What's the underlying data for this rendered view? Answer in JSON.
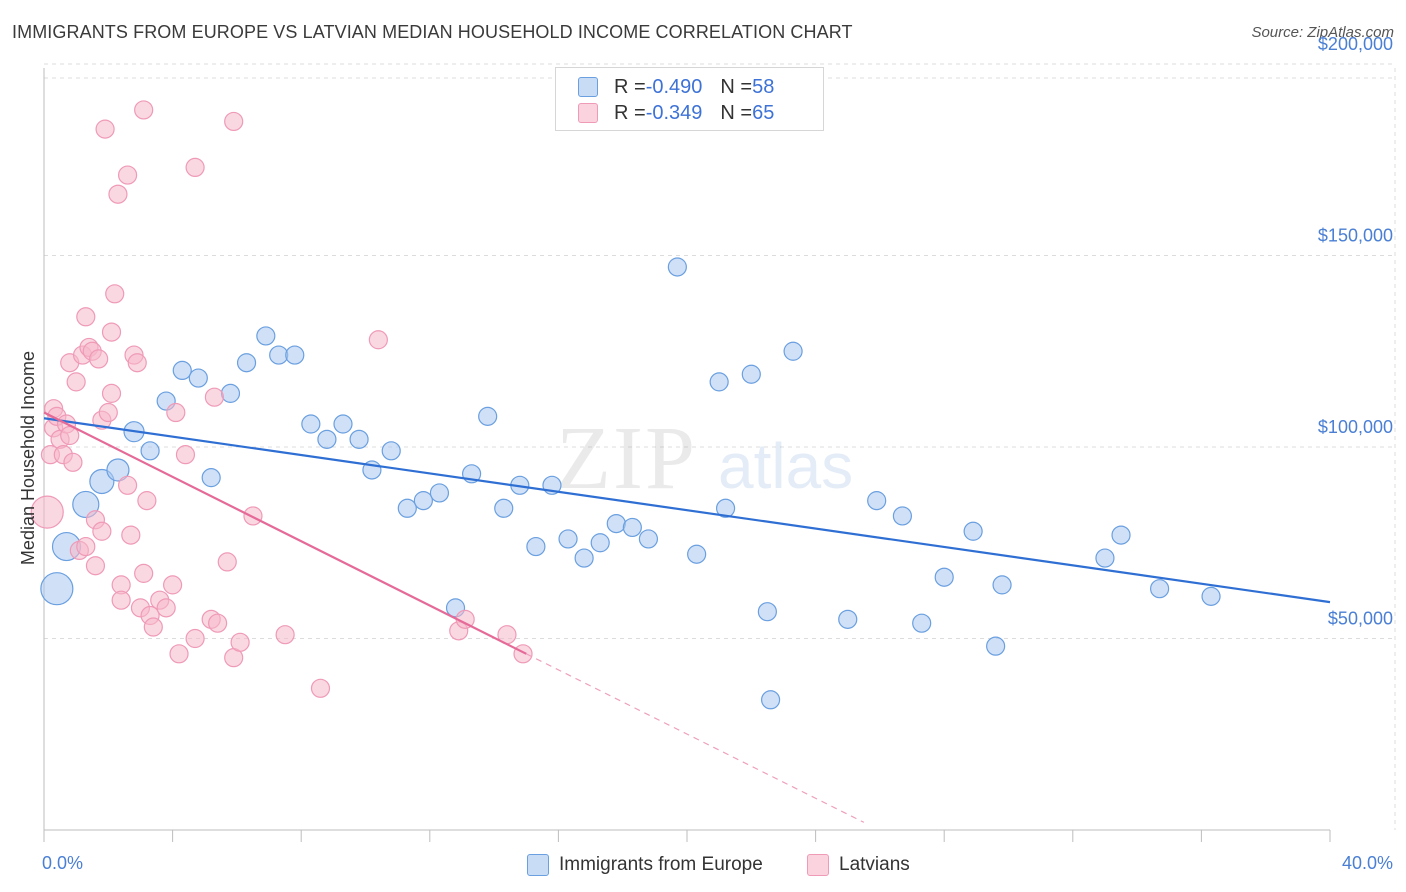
{
  "title": "IMMIGRANTS FROM EUROPE VS LATVIAN MEDIAN HOUSEHOLD INCOME CORRELATION CHART",
  "source": "Source: ZipAtlas.com",
  "watermark": {
    "zip": "ZIP",
    "atlas": "atlas"
  },
  "legend_top": {
    "rows": [
      {
        "r_label": "R = ",
        "r_value": "-0.490",
        "n_label": "N = ",
        "n_value": "58",
        "color": "#a9c8f0"
      },
      {
        "r_label": "R = ",
        "r_value": "-0.349",
        "n_label": "N = ",
        "n_value": "65",
        "color": "#f5b8cb"
      }
    ]
  },
  "legend_bottom": [
    {
      "label": "Immigrants from Europe",
      "color": "#a9c8f0"
    },
    {
      "label": "Latvians",
      "color": "#f5b8cb"
    }
  ],
  "chart_data": {
    "type": "scatter",
    "xlabel": "",
    "ylabel": "Median Household Income",
    "xlim": [
      0,
      40
    ],
    "ylim": [
      0,
      210000
    ],
    "x_tick_labels": [
      "0.0%",
      "40.0%"
    ],
    "y_ticks": [
      50000,
      100000,
      150000,
      200000
    ],
    "y_tick_labels": [
      "$50,000",
      "$100,000",
      "$150,000",
      "$200,000"
    ],
    "grid": true,
    "series": [
      {
        "name": "Immigrants from Europe",
        "color": "#6a9fe0",
        "fill": "#a9c8f0",
        "trend": {
          "x": [
            0,
            40
          ],
          "y": [
            107500,
            59500
          ],
          "color": "#2f6fd4"
        },
        "points": [
          [
            0.4,
            63000,
            16
          ],
          [
            0.7,
            74000,
            14
          ],
          [
            1.3,
            85000,
            13
          ],
          [
            1.8,
            91000,
            12
          ],
          [
            2.3,
            94000,
            11
          ],
          [
            2.8,
            104000,
            10
          ],
          [
            3.3,
            99000,
            9
          ],
          [
            3.8,
            112000,
            9
          ],
          [
            4.3,
            120000,
            9
          ],
          [
            4.8,
            118000,
            9
          ],
          [
            5.2,
            92000,
            9
          ],
          [
            5.8,
            114000,
            9
          ],
          [
            6.3,
            122000,
            9
          ],
          [
            6.9,
            129000,
            9
          ],
          [
            7.3,
            124000,
            9
          ],
          [
            7.8,
            124000,
            9
          ],
          [
            8.3,
            106000,
            9
          ],
          [
            8.8,
            102000,
            9
          ],
          [
            9.3,
            106000,
            9
          ],
          [
            9.8,
            102000,
            9
          ],
          [
            10.2,
            94000,
            9
          ],
          [
            10.8,
            99000,
            9
          ],
          [
            11.3,
            84000,
            9
          ],
          [
            11.8,
            86000,
            9
          ],
          [
            12.3,
            88000,
            9
          ],
          [
            12.8,
            58000,
            9
          ],
          [
            13.3,
            93000,
            9
          ],
          [
            13.8,
            108000,
            9
          ],
          [
            14.3,
            84000,
            9
          ],
          [
            14.8,
            90000,
            9
          ],
          [
            15.3,
            74000,
            9
          ],
          [
            15.8,
            90000,
            9
          ],
          [
            16.3,
            76000,
            9
          ],
          [
            16.8,
            71000,
            9
          ],
          [
            17.3,
            75000,
            9
          ],
          [
            17.8,
            80000,
            9
          ],
          [
            18.3,
            79000,
            9
          ],
          [
            18.8,
            76000,
            9
          ],
          [
            19.7,
            147000,
            9
          ],
          [
            20.3,
            72000,
            9
          ],
          [
            21.0,
            117000,
            9
          ],
          [
            21.2,
            84000,
            9
          ],
          [
            22.0,
            119000,
            9
          ],
          [
            22.5,
            57000,
            9
          ],
          [
            22.6,
            34000,
            9
          ],
          [
            23.3,
            125000,
            9
          ],
          [
            25.0,
            55000,
            9
          ],
          [
            25.9,
            86000,
            9
          ],
          [
            26.7,
            82000,
            9
          ],
          [
            27.3,
            54000,
            9
          ],
          [
            28.0,
            66000,
            9
          ],
          [
            28.9,
            78000,
            9
          ],
          [
            29.6,
            48000,
            9
          ],
          [
            29.8,
            64000,
            9
          ],
          [
            33.0,
            71000,
            9
          ],
          [
            33.5,
            77000,
            9
          ],
          [
            34.7,
            63000,
            9
          ],
          [
            36.3,
            61000,
            9
          ]
        ]
      },
      {
        "name": "Latvians",
        "color": "#ef9ab7",
        "fill": "#f5b8cb",
        "trend": {
          "x": [
            0,
            15
          ],
          "y": [
            109000,
            46000
          ],
          "color": "#e56a97"
        },
        "trend_dashed": {
          "x": [
            15,
            25.5
          ],
          "y": [
            46000,
            2000
          ],
          "color": "#eea0bd"
        },
        "points": [
          [
            0.1,
            83000,
            16
          ],
          [
            0.2,
            98000,
            9
          ],
          [
            0.3,
            110000,
            9
          ],
          [
            0.3,
            105000,
            9
          ],
          [
            0.4,
            108000,
            9
          ],
          [
            0.5,
            102000,
            9
          ],
          [
            0.6,
            98000,
            9
          ],
          [
            0.7,
            106000,
            9
          ],
          [
            0.8,
            103000,
            9
          ],
          [
            0.8,
            122000,
            9
          ],
          [
            0.9,
            96000,
            9
          ],
          [
            1.0,
            117000,
            9
          ],
          [
            1.1,
            73000,
            9
          ],
          [
            1.2,
            124000,
            9
          ],
          [
            1.3,
            74000,
            9
          ],
          [
            1.3,
            134000,
            9
          ],
          [
            1.4,
            126000,
            9
          ],
          [
            1.5,
            125000,
            9
          ],
          [
            1.6,
            81000,
            9
          ],
          [
            1.6,
            69000,
            9
          ],
          [
            1.7,
            123000,
            9
          ],
          [
            1.8,
            107000,
            9
          ],
          [
            1.8,
            78000,
            9
          ],
          [
            1.9,
            183000,
            9
          ],
          [
            2.0,
            109000,
            9
          ],
          [
            2.1,
            130000,
            9
          ],
          [
            2.1,
            114000,
            9
          ],
          [
            2.2,
            140000,
            9
          ],
          [
            2.3,
            166000,
            9
          ],
          [
            2.4,
            64000,
            9
          ],
          [
            2.4,
            60000,
            9
          ],
          [
            2.6,
            90000,
            9
          ],
          [
            2.6,
            171000,
            9
          ],
          [
            2.7,
            77000,
            9
          ],
          [
            2.8,
            124000,
            9
          ],
          [
            2.9,
            122000,
            9
          ],
          [
            3.0,
            58000,
            9
          ],
          [
            3.1,
            67000,
            9
          ],
          [
            3.1,
            188000,
            9
          ],
          [
            3.2,
            86000,
            9
          ],
          [
            3.3,
            56000,
            9
          ],
          [
            3.4,
            53000,
            9
          ],
          [
            3.6,
            60000,
            9
          ],
          [
            3.8,
            58000,
            9
          ],
          [
            4.0,
            64000,
            9
          ],
          [
            4.1,
            109000,
            9
          ],
          [
            4.2,
            46000,
            9
          ],
          [
            4.4,
            98000,
            9
          ],
          [
            4.7,
            50000,
            9
          ],
          [
            4.7,
            173000,
            9
          ],
          [
            5.2,
            55000,
            9
          ],
          [
            5.3,
            113000,
            9
          ],
          [
            5.4,
            54000,
            9
          ],
          [
            5.7,
            70000,
            9
          ],
          [
            5.9,
            45000,
            9
          ],
          [
            5.9,
            185000,
            9
          ],
          [
            6.1,
            49000,
            9
          ],
          [
            6.5,
            82000,
            9
          ],
          [
            7.5,
            51000,
            9
          ],
          [
            8.6,
            37000,
            9
          ],
          [
            10.4,
            128000,
            9
          ],
          [
            12.9,
            52000,
            9
          ],
          [
            13.1,
            55000,
            9
          ],
          [
            14.4,
            51000,
            9
          ],
          [
            14.9,
            46000,
            9
          ]
        ]
      }
    ]
  }
}
